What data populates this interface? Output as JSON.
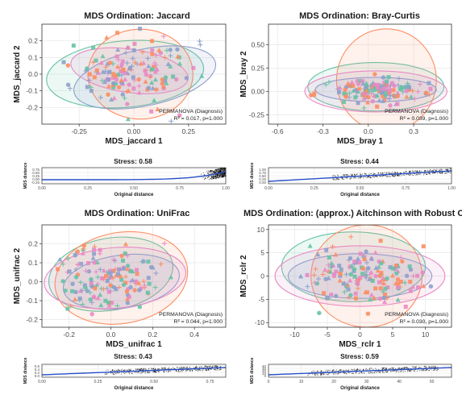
{
  "palette": {
    "groups": [
      "#66c2a5",
      "#fc8d62",
      "#8da0cb",
      "#e78ac3"
    ],
    "grid": "#e6e6e6",
    "panel_border": "#333333",
    "stress_line": "#2850c8"
  },
  "chart_data": [
    {
      "type": "scatter",
      "title": "MDS Ordination: Jaccard",
      "xlabel": "MDS_jaccard 1",
      "ylabel": "MDS_jaccard 2",
      "xlim": [
        -0.42,
        0.42
      ],
      "ylim": [
        -0.3,
        0.3
      ],
      "xticks": [
        -0.25,
        0,
        0.25
      ],
      "xtick_labels": [
        "-0.25",
        "0.00",
        "0.25"
      ],
      "yticks": [
        -0.2,
        -0.1,
        0.0,
        0.1,
        0.2
      ],
      "ytick_labels": [
        "-0.2",
        "-0.1",
        "0.0",
        "0.1",
        "0.2"
      ],
      "annotation": [
        "PERMANOVA (Diagnosis)",
        "R² = 0.017, p=1.000"
      ],
      "ellipses": [
        {
          "cx": -0.04,
          "cy": 0.0,
          "rx": 0.36,
          "ry": 0.2,
          "angle": -5
        },
        {
          "cx": 0.03,
          "cy": 0.0,
          "rx": 0.24,
          "ry": 0.27,
          "angle": 0
        },
        {
          "cx": 0.05,
          "cy": -0.02,
          "rx": 0.33,
          "ry": 0.17,
          "angle": -12
        },
        {
          "cx": -0.02,
          "cy": 0.02,
          "rx": 0.27,
          "ry": 0.13,
          "angle": 8
        }
      ],
      "seed": 11,
      "n": 160,
      "center": [
        0.0,
        0.0
      ],
      "spread": [
        0.13,
        0.1
      ]
    },
    {
      "type": "scatter",
      "title": "MDS Ordination: Bray-Curtis",
      "xlabel": "MDS_bray 1",
      "ylabel": "MDS_bray 2",
      "xlim": [
        -0.66,
        0.55
      ],
      "ylim": [
        -0.35,
        0.72
      ],
      "xticks": [
        -0.6,
        -0.3,
        0,
        0.3
      ],
      "xtick_labels": [
        "-0.6",
        "-0.3",
        "0.0",
        "0.3"
      ],
      "yticks": [
        -0.25,
        0,
        0.25,
        0.5
      ],
      "ytick_labels": [
        "-0.25",
        "0.00",
        "0.25",
        "0.50"
      ],
      "annotation": [
        "PERMANOVA (Diagnosis)",
        "R² = 0.039, p=1.000"
      ],
      "ellipses": [
        {
          "cx": 0.05,
          "cy": 0.05,
          "rx": 0.45,
          "ry": 0.26,
          "angle": 0
        },
        {
          "cx": 0.12,
          "cy": 0.12,
          "rx": 0.33,
          "ry": 0.55,
          "angle": 0
        },
        {
          "cx": 0.05,
          "cy": 0.02,
          "rx": 0.4,
          "ry": 0.13,
          "angle": 0
        },
        {
          "cx": 0.05,
          "cy": 0.0,
          "rx": 0.47,
          "ry": 0.22,
          "angle": 0
        }
      ],
      "seed": 23,
      "n": 160,
      "center": [
        0.05,
        0.0
      ],
      "spread": [
        0.16,
        0.06
      ]
    },
    {
      "type": "scatter",
      "title": "MDS Ordination: UniFrac",
      "xlabel": "MDS_unifrac 1",
      "ylabel": "MDS_unifrac 2",
      "xlim": [
        -0.33,
        0.55
      ],
      "ylim": [
        -0.24,
        0.3
      ],
      "xticks": [
        -0.2,
        0,
        0.2,
        0.4
      ],
      "xtick_labels": [
        "-0.2",
        "0.0",
        "0.2",
        "0.4"
      ],
      "yticks": [
        -0.2,
        -0.1,
        0.0,
        0.1,
        0.2
      ],
      "ytick_labels": [
        "-0.2",
        "-0.1",
        "0.0",
        "0.1",
        "0.2"
      ],
      "annotation": [
        "PERMANOVA (Diagnosis)",
        "R² = 0.044, p=1.000"
      ],
      "ellipses": [
        {
          "cx": 0.0,
          "cy": 0.04,
          "rx": 0.3,
          "ry": 0.19,
          "angle": -10
        },
        {
          "cx": 0.05,
          "cy": 0.02,
          "rx": 0.32,
          "ry": 0.24,
          "angle": -10
        },
        {
          "cx": 0.05,
          "cy": 0.0,
          "rx": 0.28,
          "ry": 0.14,
          "angle": -8
        },
        {
          "cx": 0.02,
          "cy": 0.02,
          "rx": 0.34,
          "ry": 0.16,
          "angle": -5
        }
      ],
      "seed": 37,
      "n": 160,
      "center": [
        0.0,
        0.02
      ],
      "spread": [
        0.12,
        0.08
      ]
    },
    {
      "type": "scatter",
      "title": "MDS Ordination: (approx.) Aitchinson with Robust CLR",
      "xlabel": "MDS_rclr 1",
      "ylabel": "MDS_rclr 2",
      "xlim": [
        -14,
        14
      ],
      "ylim": [
        -11,
        11
      ],
      "xticks": [
        -10,
        -5,
        0,
        5,
        10
      ],
      "xtick_labels": [
        "-10",
        "-5",
        "0",
        "5",
        "10"
      ],
      "yticks": [
        -10,
        -5,
        0,
        5,
        10
      ],
      "ytick_labels": [
        "-10",
        "-5",
        "0",
        "5",
        "10"
      ],
      "annotation": [
        "PERMANOVA (Diagnosis)",
        "R² = 0.030, p=1.000"
      ],
      "ellipses": [
        {
          "cx": -1,
          "cy": 2,
          "rx": 11,
          "ry": 7.5,
          "angle": 0
        },
        {
          "cx": 1,
          "cy": 0,
          "rx": 8.5,
          "ry": 11,
          "angle": 0
        },
        {
          "cx": 0,
          "cy": 0,
          "rx": 11,
          "ry": 4.8,
          "angle": 0
        },
        {
          "cx": 0,
          "cy": 0,
          "rx": 13,
          "ry": 6.5,
          "angle": 0
        }
      ],
      "seed": 51,
      "n": 170,
      "center": [
        0,
        0
      ],
      "spread": [
        4.5,
        3.2
      ]
    }
  ],
  "stress_plots": [
    {
      "title": "Stress: 0.58",
      "xlabel": "Original distance",
      "ylabel": "MDS distance",
      "xlim": [
        0,
        1.0
      ],
      "xticks": [
        0,
        0.25,
        0.5,
        0.75,
        1.0
      ],
      "xtick_labels": [
        "0.00",
        "0.25",
        "0.50",
        "0.75",
        "1.00"
      ],
      "ytick_labels": [
        "0.75",
        "0.50",
        "0.25",
        "0.00",
        "-0.25"
      ],
      "cloud_from": 0.85,
      "cloud_to": 1.0
    },
    {
      "title": "Stress: 0.44",
      "xlabel": "Original distance",
      "ylabel": "MDS distance",
      "xlim": [
        0,
        1.0
      ],
      "xticks": [
        0,
        0.25,
        0.5,
        0.75,
        1.0
      ],
      "xtick_labels": [
        "0.00",
        "0.25",
        "0.50",
        "0.75",
        "1.00"
      ],
      "ytick_labels": [
        "1.00",
        "0.75",
        "0.50",
        "0.25",
        "0.00"
      ],
      "cloud_from": 0.35,
      "cloud_to": 1.0
    },
    {
      "title": "Stress: 0.43",
      "xlabel": "Original distance",
      "ylabel": "MDS distance",
      "xlim": [
        0,
        0.82
      ],
      "xticks": [
        0,
        0.25,
        0.5,
        0.75
      ],
      "xtick_labels": [
        "0.00",
        "0.25",
        "0.50",
        "0.75"
      ],
      "ytick_labels": [
        "0.6",
        "0.4",
        "0.2",
        "0.0"
      ],
      "cloud_from": 0.28,
      "cloud_to": 0.8
    },
    {
      "title": "Stress: 0.59",
      "xlabel": "Original distance",
      "ylabel": "MDS distance",
      "xlim": [
        0,
        56
      ],
      "xticks": [
        0,
        10,
        20,
        30,
        40,
        50
      ],
      "xtick_labels": [
        "0",
        "10",
        "20",
        "30",
        "40",
        "50"
      ],
      "ytick_labels": [
        "40",
        "30",
        "20",
        "10",
        "0"
      ],
      "cloud_from": 12,
      "cloud_to": 52
    }
  ]
}
